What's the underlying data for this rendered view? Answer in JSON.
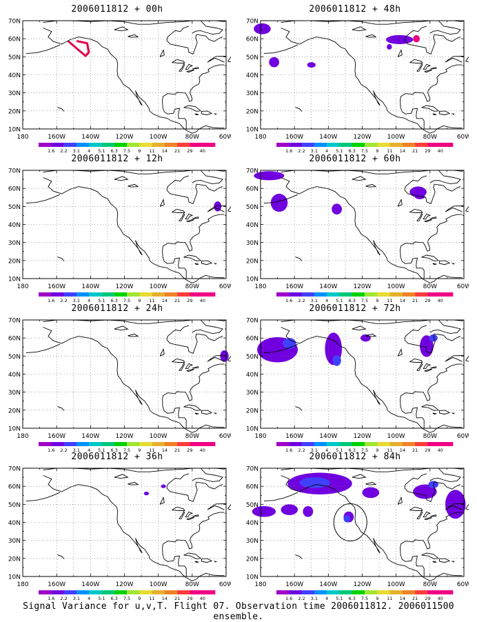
{
  "caption": "Signal Variance for u,v,T. Flight 07. Observation time 2006011812. 2006011500 ensemble.",
  "lat_labels": [
    "70N",
    "60N",
    "50N",
    "40N",
    "30N",
    "20N",
    "10N"
  ],
  "lon_labels": [
    "180",
    "160W",
    "140W",
    "120W",
    "100W",
    "80W",
    "60W"
  ],
  "colorbar": {
    "labels": [
      "1.6",
      "2.2",
      "3.1",
      "4",
      "5.1",
      "6.3",
      "7.5",
      "9",
      "11",
      "14",
      "21",
      "29",
      "40"
    ],
    "colors": [
      "#a000c8",
      "#7000e0",
      "#4040ff",
      "#0090ff",
      "#00c8c8",
      "#00c878",
      "#00d200",
      "#a0e632",
      "#e6dc32",
      "#e6af2d",
      "#f08228",
      "#fa3c3c",
      "#f00082"
    ]
  },
  "panels": [
    {
      "title": "2006011812 + 00h"
    },
    {
      "title": "2006011812 + 48h"
    },
    {
      "title": "2006011812 + 12h"
    },
    {
      "title": "2006011812 + 60h"
    },
    {
      "title": "2006011812 + 24h"
    },
    {
      "title": "2006011812 + 72h"
    },
    {
      "title": "2006011812 + 36h"
    },
    {
      "title": "2006011812 + 84h"
    }
  ]
}
